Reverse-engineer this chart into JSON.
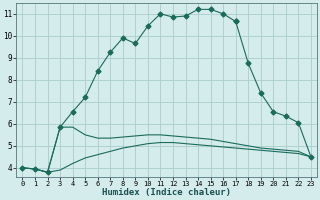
{
  "xlabel": "Humidex (Indice chaleur)",
  "bg_color": "#d5ecec",
  "grid_color": "#b0d0d0",
  "line_color": "#1a6b5a",
  "xlim": [
    -0.5,
    23.5
  ],
  "ylim": [
    3.6,
    11.5
  ],
  "yticks": [
    4,
    5,
    6,
    7,
    8,
    9,
    10,
    11
  ],
  "xticks": [
    0,
    1,
    2,
    3,
    4,
    5,
    6,
    7,
    8,
    9,
    10,
    11,
    12,
    13,
    14,
    15,
    16,
    17,
    18,
    19,
    20,
    21,
    22,
    23
  ],
  "line1_x": [
    0,
    1,
    2,
    3,
    4,
    5,
    6,
    7,
    8,
    9,
    10,
    11,
    12,
    13,
    14,
    15,
    16,
    17,
    18,
    19,
    20,
    21,
    22,
    23
  ],
  "line1_y": [
    4.0,
    3.95,
    3.8,
    5.85,
    6.55,
    7.2,
    8.4,
    9.25,
    9.9,
    9.65,
    10.45,
    11.0,
    10.85,
    10.9,
    11.2,
    11.2,
    11.0,
    10.65,
    8.75,
    null,
    null,
    null,
    null,
    null
  ],
  "line2_x": [
    0,
    1,
    2,
    3,
    4,
    5,
    6,
    7,
    8,
    9,
    10,
    11,
    12,
    13,
    14,
    15,
    16,
    17,
    18,
    19,
    20,
    21,
    22,
    23
  ],
  "line2_y": [
    4.0,
    3.95,
    3.8,
    3.9,
    4.2,
    4.45,
    4.6,
    4.75,
    4.9,
    5.0,
    5.1,
    5.15,
    5.15,
    5.1,
    5.05,
    5.0,
    4.95,
    4.9,
    4.85,
    4.8,
    4.75,
    4.7,
    4.65,
    4.5
  ],
  "line3_x": [
    0,
    1,
    2,
    3,
    4,
    5,
    6,
    7,
    8,
    9,
    10,
    11,
    12,
    13,
    14,
    15,
    16,
    17,
    18,
    19,
    20,
    21,
    22,
    23
  ],
  "line3_y": [
    4.0,
    3.95,
    3.8,
    5.85,
    5.85,
    5.5,
    5.35,
    5.35,
    5.4,
    5.45,
    5.5,
    5.5,
    5.45,
    5.4,
    5.35,
    5.3,
    5.2,
    5.1,
    5.0,
    4.9,
    4.85,
    4.8,
    4.75,
    4.5
  ],
  "line4_x": [
    17,
    18,
    19,
    20,
    21,
    22,
    23
  ],
  "line4_y": [
    10.65,
    8.75,
    7.4,
    6.55,
    6.35,
    6.05,
    4.5
  ]
}
